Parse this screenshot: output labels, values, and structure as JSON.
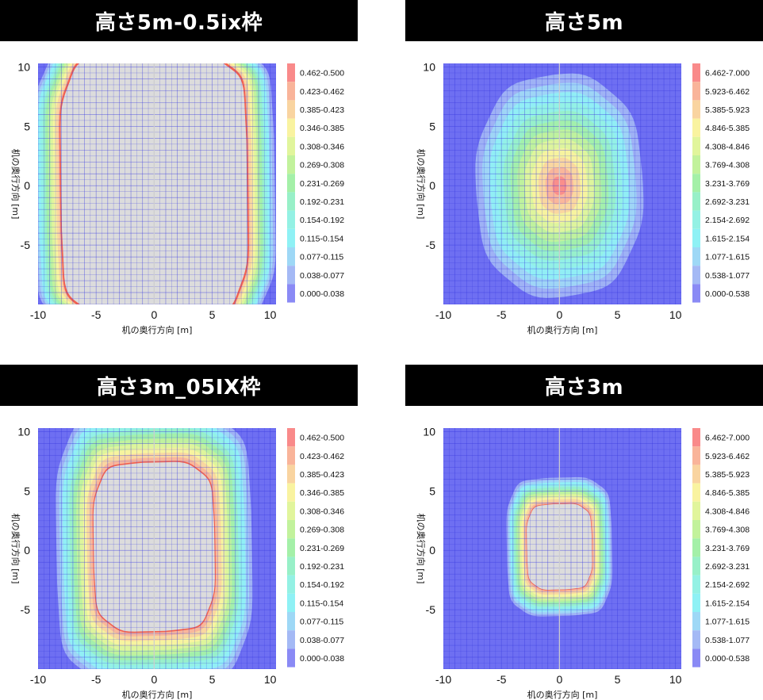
{
  "chart_data": [
    {
      "type": "heatmap",
      "title": "高さ5m-0.5ix枠",
      "xlabel": "机の奥行方向 [m]",
      "ylabel": "机の奥行方向 [m]",
      "xlim": [
        -10,
        10.5
      ],
      "ylim": [
        -10,
        10.3
      ],
      "x_ticks": [
        "-10",
        "-5",
        "0",
        "5",
        "10"
      ],
      "y_ticks": [
        "10",
        "5",
        "0",
        "-5"
      ],
      "levels": [
        "0.462-0.500",
        "0.423-0.462",
        "0.385-0.423",
        "0.346-0.385",
        "0.308-0.346",
        "0.269-0.308",
        "0.231-0.269",
        "0.192-0.231",
        "0.154-0.192",
        "0.115-0.154",
        "0.077-0.115",
        "0.038-0.077",
        "0.000-0.038"
      ],
      "region": {
        "shape": "wide",
        "cx": 0,
        "cy": 0,
        "a": 8.0,
        "b": 11.0
      }
    },
    {
      "type": "heatmap",
      "title": "高さ5m",
      "xlabel": "机の奥行方向 [m]",
      "ylabel": "机の奥行方向 [m]",
      "xlim": [
        -10,
        10.5
      ],
      "ylim": [
        -10,
        10.3
      ],
      "x_ticks": [
        "-10",
        "-5",
        "0",
        "5",
        "10"
      ],
      "y_ticks": [
        "10",
        "5",
        "0",
        "-5"
      ],
      "levels": [
        "6.462-7.000",
        "5.923-6.462",
        "5.385-5.923",
        "4.846-5.385",
        "4.308-4.846",
        "3.769-4.308",
        "3.231-3.769",
        "2.692-3.231",
        "2.154-2.692",
        "1.615-2.154",
        "1.077-1.615",
        "0.538-1.077",
        "0.000-0.538"
      ],
      "region": {
        "shape": "peak",
        "cx": 0,
        "cy": 0,
        "a": 7.2,
        "b": 9.4
      }
    },
    {
      "type": "heatmap",
      "title": "高さ3m_05IX枠",
      "xlabel": "机の奥行方向 [m]",
      "ylabel": "机の奥行方向 [m]",
      "xlim": [
        -10,
        10.5
      ],
      "ylim": [
        -10,
        10.3
      ],
      "x_ticks": [
        "-10",
        "-5",
        "0",
        "5",
        "10"
      ],
      "y_ticks": [
        "10",
        "5",
        "0",
        "-5"
      ],
      "levels": [
        "0.462-0.500",
        "0.423-0.462",
        "0.385-0.423",
        "0.346-0.385",
        "0.308-0.346",
        "0.269-0.308",
        "0.231-0.269",
        "0.192-0.231",
        "0.154-0.192",
        "0.115-0.154",
        "0.077-0.115",
        "0.038-0.077",
        "0.000-0.038"
      ],
      "region": {
        "shape": "ring",
        "cx": 0,
        "cy": 0.3,
        "a": 5.2,
        "b": 7.1
      }
    },
    {
      "type": "heatmap",
      "title": "高さ3m",
      "xlabel": "机の奥行方向 [m]",
      "ylabel": "机の奥行方向 [m]",
      "xlim": [
        -10,
        10.5
      ],
      "ylim": [
        -10,
        10.3
      ],
      "x_ticks": [
        "-10",
        "-5",
        "0",
        "5",
        "10"
      ],
      "y_ticks": [
        "10",
        "5",
        "0",
        "-5"
      ],
      "levels": [
        "6.462-7.000",
        "5.923-6.462",
        "5.385-5.923",
        "4.846-5.385",
        "4.308-4.846",
        "3.769-4.308",
        "3.231-3.769",
        "2.692-3.231",
        "2.154-2.692",
        "1.615-2.154",
        "1.077-1.615",
        "0.538-1.077",
        "0.000-0.538"
      ],
      "region": {
        "shape": "ring",
        "cx": 0,
        "cy": 0.3,
        "a": 2.8,
        "b": 3.6
      }
    }
  ],
  "colors": {
    "legend_swatches": [
      "#f98a8a",
      "#f9b49a",
      "#f9d4a0",
      "#f9f3a0",
      "#e1f59c",
      "#c2f29c",
      "#a4f0a8",
      "#98f0c8",
      "#94f1e4",
      "#8ff1f5",
      "#9ed8f6",
      "#a4b9f5",
      "#8a8af5"
    ],
    "background": "#6e6ff2",
    "grid": "#3a3ce0",
    "hole": "#dcdcdc"
  }
}
